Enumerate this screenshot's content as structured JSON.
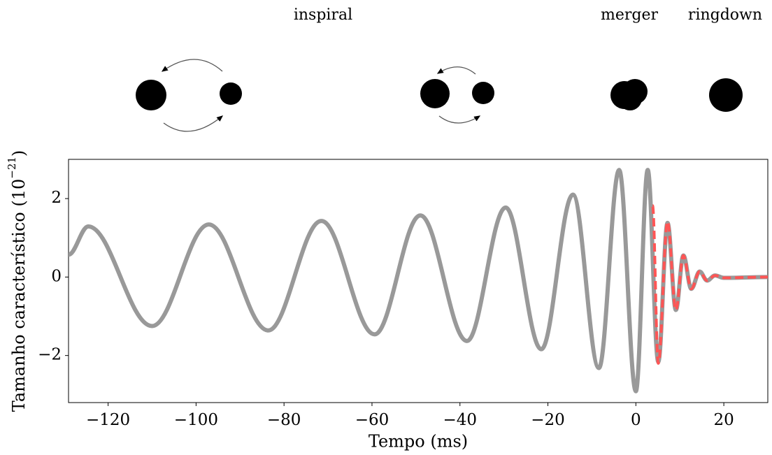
{
  "chart_data": {
    "type": "line",
    "annotations": [
      "inspiral",
      "merger",
      "ringdown"
    ],
    "xlabel": "Tempo (ms)",
    "ylabel": {
      "text": "Tamanho característico (10",
      "exponent": "−21",
      "close": ")"
    },
    "xlim": [
      -129,
      30
    ],
    "ylim": [
      -3.2,
      3.0
    ],
    "xticks": [
      {
        "value": -120,
        "label": "−120"
      },
      {
        "value": -100,
        "label": "−100"
      },
      {
        "value": -80,
        "label": "−80"
      },
      {
        "value": -60,
        "label": "−60"
      },
      {
        "value": -40,
        "label": "−40"
      },
      {
        "value": -20,
        "label": "−20"
      },
      0,
      20
    ],
    "yticks": [
      {
        "value": -2,
        "label": "−2"
      },
      0,
      2
    ],
    "grid": false,
    "series": [
      {
        "color": "#999999",
        "dashed": false,
        "x": [
          -129,
          -124.5,
          -110,
          -97.1,
          -83.6,
          -71.5,
          -59.4,
          -49.0,
          -38.4,
          -29.6,
          -21.5,
          -14.3,
          -8.4,
          -3.8,
          0,
          2.7,
          5.1,
          7.2,
          9.1,
          10.8,
          12.6,
          14.5,
          16.2,
          18,
          20,
          30
        ],
        "values": [
          0.57,
          1.29,
          -1.25,
          1.34,
          -1.36,
          1.43,
          -1.46,
          1.57,
          -1.63,
          1.77,
          -1.84,
          2.1,
          -2.32,
          2.73,
          -2.91,
          2.73,
          -2.16,
          1.38,
          -0.84,
          0.55,
          -0.3,
          0.14,
          -0.09,
          0.04,
          -0.02,
          0
        ]
      },
      {
        "color": "#ff5555",
        "dashed": true,
        "x": [
          3.8,
          5.1,
          7.2,
          9.1,
          10.8,
          12.6,
          14.5,
          16.2,
          18,
          20,
          30
        ],
        "values": [
          1.82,
          -2.2,
          1.41,
          -0.84,
          0.55,
          -0.3,
          0.14,
          -0.09,
          0.04,
          -0.02,
          0
        ]
      }
    ]
  }
}
